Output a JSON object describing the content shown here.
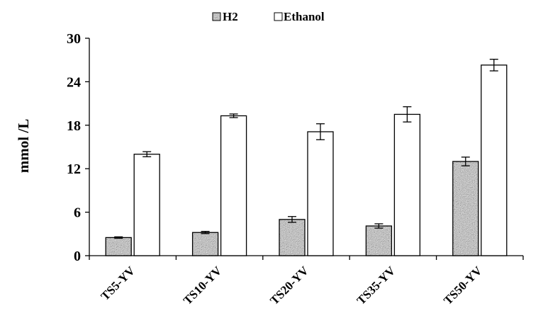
{
  "chart_data": {
    "type": "bar",
    "title": "",
    "xlabel": "",
    "ylabel": "mmol /L",
    "ylim": [
      0,
      30
    ],
    "yticks": [
      0,
      6,
      12,
      18,
      24,
      30
    ],
    "grid": false,
    "legend_position": "top-center",
    "categories": [
      "TS5-YV",
      "TS10-YV",
      "TS20-YV",
      "TS35-YV",
      "TS50-YV"
    ],
    "series": [
      {
        "name": "H2",
        "fill": "speckled-gray",
        "values": [
          2.5,
          3.2,
          5.0,
          4.1,
          13.0
        ],
        "errors": [
          0.1,
          0.15,
          0.4,
          0.3,
          0.6
        ]
      },
      {
        "name": "Ethanol",
        "fill": "white",
        "values": [
          14.0,
          19.3,
          17.1,
          19.5,
          26.3
        ],
        "errors": [
          0.35,
          0.25,
          1.1,
          1.05,
          0.8
        ]
      }
    ]
  }
}
